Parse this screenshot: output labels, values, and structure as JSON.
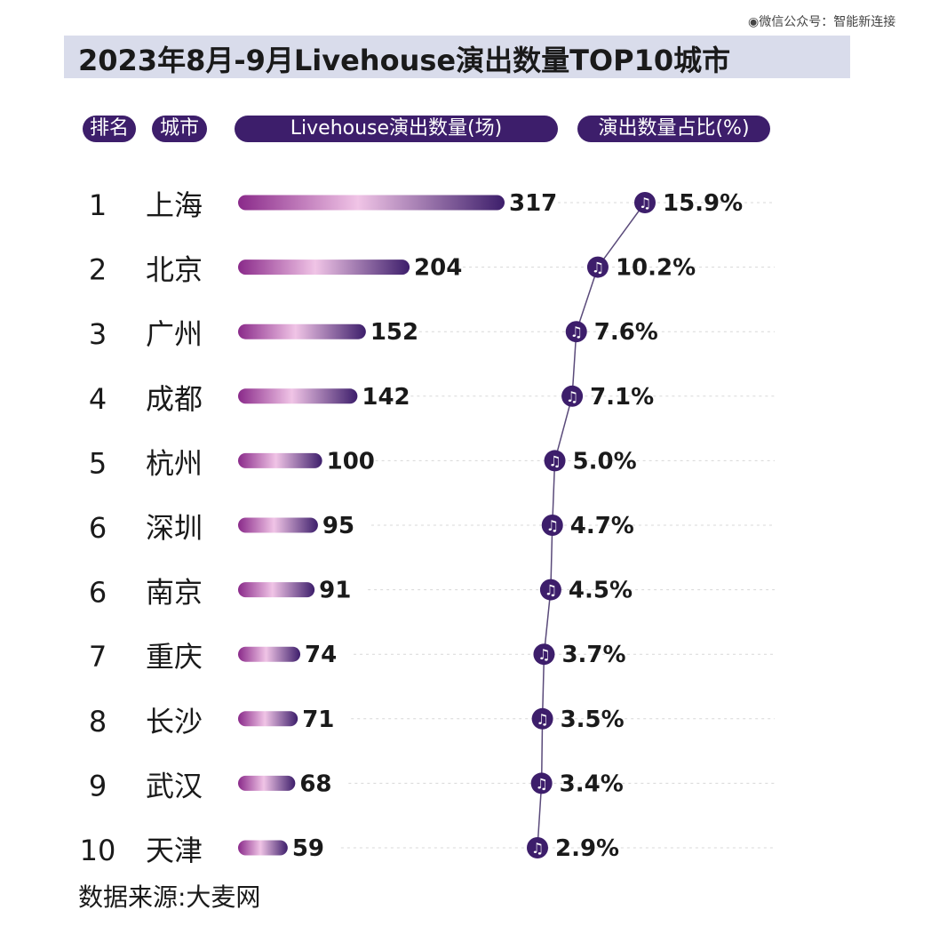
{
  "watermark": "◉微信公众号：智能新连接",
  "chart_data": {
    "type": "bar",
    "title": "2023年8月-9月Livehouse演出数量TOP10城市",
    "column_headers": {
      "rank": "排名",
      "city": "城市",
      "count": "Livehouse演出数量(场)",
      "share": "演出数量占比(%)"
    },
    "ranks": [
      "1",
      "2",
      "3",
      "4",
      "5",
      "6",
      "6",
      "7",
      "8",
      "9",
      "10"
    ],
    "categories": [
      "上海",
      "北京",
      "广州",
      "成都",
      "杭州",
      "深圳",
      "南京",
      "重庆",
      "长沙",
      "武汉",
      "天津"
    ],
    "values": [
      317,
      204,
      152,
      142,
      100,
      95,
      91,
      74,
      71,
      68,
      59
    ],
    "share_values": [
      15.9,
      10.2,
      7.6,
      7.1,
      5.0,
      4.7,
      4.5,
      3.7,
      3.5,
      3.4,
      2.9
    ],
    "share_labels": [
      "15.9%",
      "10.2%",
      "7.6%",
      "7.1%",
      "5.0%",
      "4.7%",
      "4.5%",
      "3.7%",
      "3.5%",
      "3.4%",
      "2.9%"
    ],
    "colors": {
      "dark": "#3d1e6b",
      "mid": "#8a2a8a",
      "light": "#f0c4e6",
      "band": "#d9dceb"
    }
  },
  "source": "数据来源:大麦网"
}
